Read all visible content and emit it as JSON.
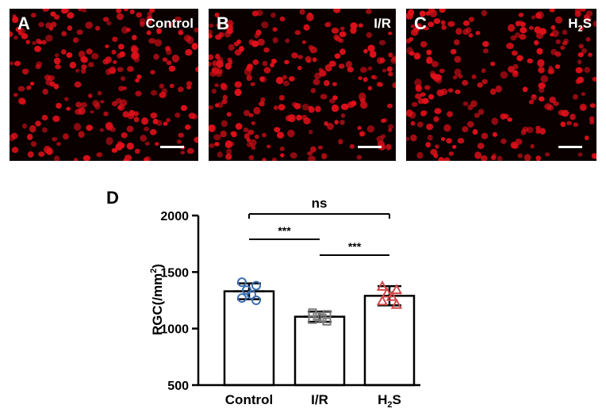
{
  "panels": [
    {
      "letter": "A",
      "label": "Control"
    },
    {
      "letter": "B",
      "label": "I/R"
    },
    {
      "letter": "C",
      "label_main": "H",
      "label_sub": "2",
      "label_tail": "S"
    }
  ],
  "colors": {
    "cell": "#e0101a",
    "background": "#0a0000",
    "control": "#3a6fb0",
    "ir": "#7a7a7a",
    "h2s": "#d04848"
  },
  "chart_data": {
    "type": "bar",
    "panel_letter": "D",
    "ylabel_main": "RGC(/mm",
    "ylabel_sup": "2",
    "ylabel_tail": ")",
    "ylim": [
      500,
      2000
    ],
    "yticks": [
      "500",
      "1000",
      "1500",
      "2000"
    ],
    "categories": [
      "Control",
      "I/R",
      "H2S"
    ],
    "category_labels": [
      {
        "main": "Control",
        "sub": "",
        "tail": ""
      },
      {
        "main": "I/R",
        "sub": "",
        "tail": ""
      },
      {
        "main": "H",
        "sub": "2",
        "tail": "S"
      }
    ],
    "values": [
      1330,
      1105,
      1290
    ],
    "sd": [
      70,
      45,
      85
    ],
    "points": [
      [
        1410,
        1380,
        1340,
        1300,
        1270,
        1250
      ],
      [
        1140,
        1125,
        1110,
        1095,
        1080,
        1065
      ],
      [
        1370,
        1340,
        1310,
        1280,
        1240,
        1210
      ]
    ],
    "markers": [
      "circle",
      "square",
      "triangle"
    ],
    "comparisons": [
      {
        "from": 0,
        "to": 1,
        "label": "***"
      },
      {
        "from": 1,
        "to": 2,
        "label": "***"
      },
      {
        "from": 0,
        "to": 2,
        "label": "ns"
      }
    ]
  }
}
